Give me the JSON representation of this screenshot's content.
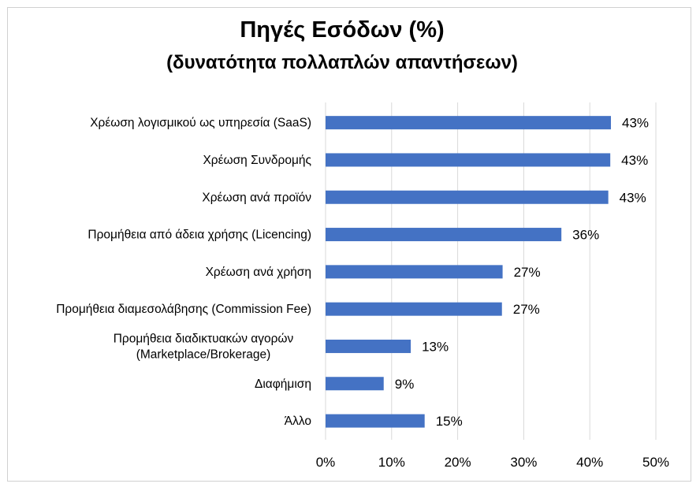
{
  "chart_data": {
    "type": "bar",
    "orientation": "horizontal",
    "title": "Πηγές Εσόδων (%)",
    "subtitle": "(δυνατότητα πολλαπλών απαντήσεων)",
    "categories": [
      [
        "Χρέωση λογισμικού ως υπηρεσία (SaaS)"
      ],
      [
        "Χρέωση Συνδρομής"
      ],
      [
        "Χρέωση ανά προϊόν"
      ],
      [
        "Προμήθεια από άδεια χρήσης (Licencing)"
      ],
      [
        "Χρέωση ανά χρήση"
      ],
      [
        "Προμήθεια διαμεσολάβησης (Commission Fee)"
      ],
      [
        "Προμήθεια διαδικτυακών  αγορών",
        "(Marketplace/Brokerage)"
      ],
      [
        "Διαφήμιση"
      ],
      [
        "Άλλο"
      ]
    ],
    "values": [
      43.2,
      43.1,
      42.8,
      35.7,
      26.8,
      26.7,
      12.9,
      8.8,
      15.0
    ],
    "data_labels": [
      "43%",
      "43%",
      "43%",
      "36%",
      "27%",
      "27%",
      "13%",
      "9%",
      "15%"
    ],
    "xticks": [
      "0%",
      "10%",
      "20%",
      "30%",
      "40%",
      "50%"
    ],
    "xlim": [
      0,
      50
    ],
    "grid": "vertical",
    "legend": "none",
    "bar_color": "#4472c4",
    "grid_color": "#d9d9d9",
    "xlabel": "",
    "ylabel": ""
  }
}
